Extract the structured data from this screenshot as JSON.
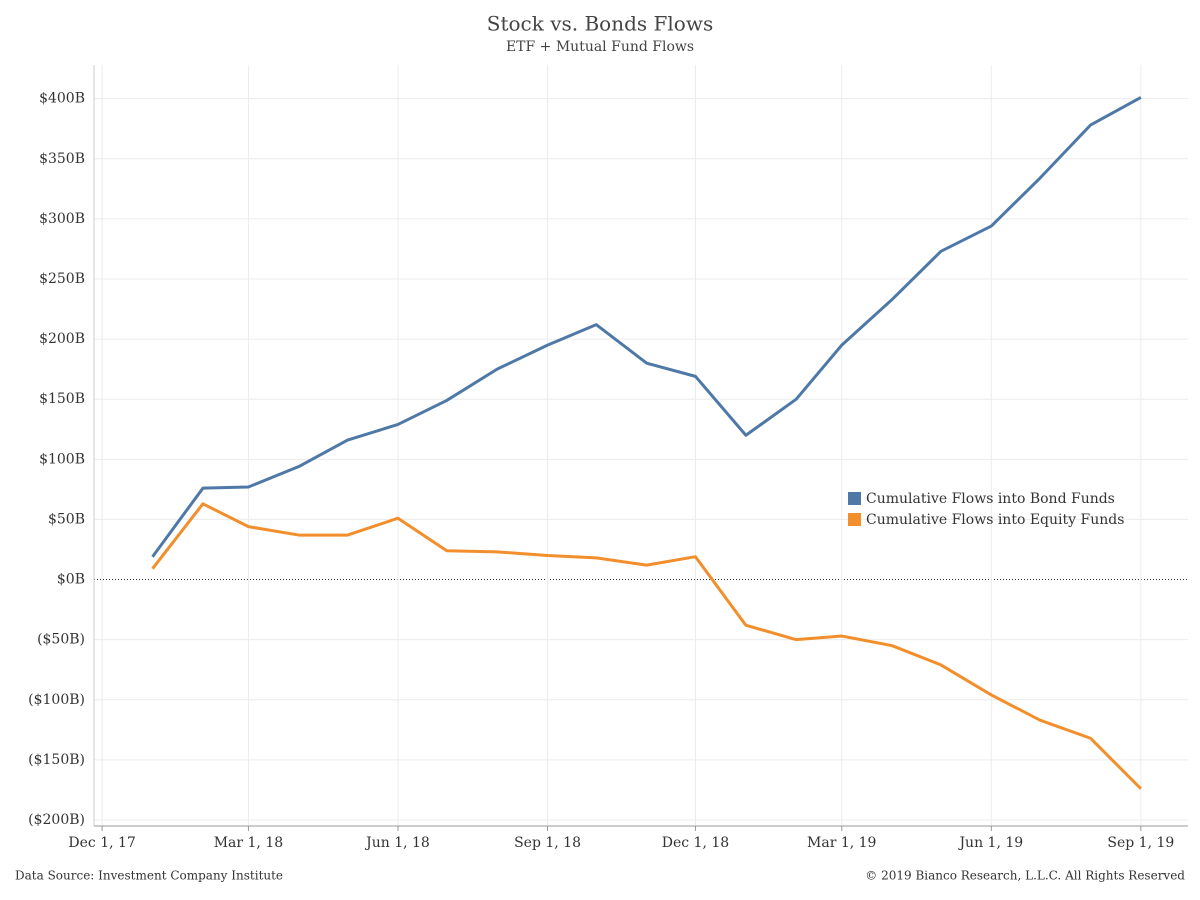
{
  "chart_data": {
    "type": "line",
    "title": "Stock vs. Bonds Flows",
    "subtitle": "ETF + Mutual Fund Flows",
    "source": "Data Source: Investment Company Institute",
    "copyright": "© 2019 Bianco Research, L.L.C. All Rights Reserved",
    "x": [
      "2018-01-01",
      "2018-02-01",
      "2018-03-01",
      "2018-04-01",
      "2018-05-01",
      "2018-06-01",
      "2018-07-01",
      "2018-08-01",
      "2018-09-01",
      "2018-10-01",
      "2018-11-01",
      "2018-12-01",
      "2019-01-01",
      "2019-02-01",
      "2019-03-01",
      "2019-04-01",
      "2019-05-01",
      "2019-06-01",
      "2019-07-01",
      "2019-08-01",
      "2019-09-01"
    ],
    "series": [
      {
        "name": "Cumulative Flows into Bond Funds",
        "color": "#4e79a7",
        "values": [
          19,
          76,
          77,
          94,
          116,
          129,
          149,
          175,
          195,
          212,
          180,
          169,
          120,
          150,
          195,
          233,
          273,
          294,
          334,
          378,
          401
        ]
      },
      {
        "name": "Cumulative Flows into Equity Funds",
        "color": "#f28e2b",
        "values": [
          9,
          63,
          44,
          37,
          37,
          51,
          24,
          23,
          20,
          18,
          12,
          19,
          -38,
          -50,
          -47,
          -55,
          -71,
          -96,
          -117,
          -132,
          -174
        ]
      }
    ],
    "xlim": [
      "2017-11-26",
      "2019-09-30"
    ],
    "xticks": [
      {
        "value": "2017-12-01",
        "label": "Dec 1, 17"
      },
      {
        "value": "2018-03-01",
        "label": "Mar 1, 18"
      },
      {
        "value": "2018-06-01",
        "label": "Jun 1, 18"
      },
      {
        "value": "2018-09-01",
        "label": "Sep 1, 18"
      },
      {
        "value": "2018-12-01",
        "label": "Dec 1, 18"
      },
      {
        "value": "2019-03-01",
        "label": "Mar 1, 19"
      },
      {
        "value": "2019-06-01",
        "label": "Jun 1, 19"
      },
      {
        "value": "2019-09-01",
        "label": "Sep 1, 19"
      }
    ],
    "ylim": [
      -205,
      428
    ],
    "yticks": [
      {
        "value": -200,
        "label": "($200B)"
      },
      {
        "value": -150,
        "label": "($150B)"
      },
      {
        "value": -100,
        "label": "($100B)"
      },
      {
        "value": -50,
        "label": "($50B)"
      },
      {
        "value": 0,
        "label": "$0B"
      },
      {
        "value": 50,
        "label": "$50B"
      },
      {
        "value": 100,
        "label": "$100B"
      },
      {
        "value": 150,
        "label": "$150B"
      },
      {
        "value": 200,
        "label": "$200B"
      },
      {
        "value": 250,
        "label": "$250B"
      },
      {
        "value": 300,
        "label": "$300B"
      },
      {
        "value": 350,
        "label": "$350B"
      },
      {
        "value": 400,
        "label": "$400B"
      }
    ],
    "grid": true
  }
}
